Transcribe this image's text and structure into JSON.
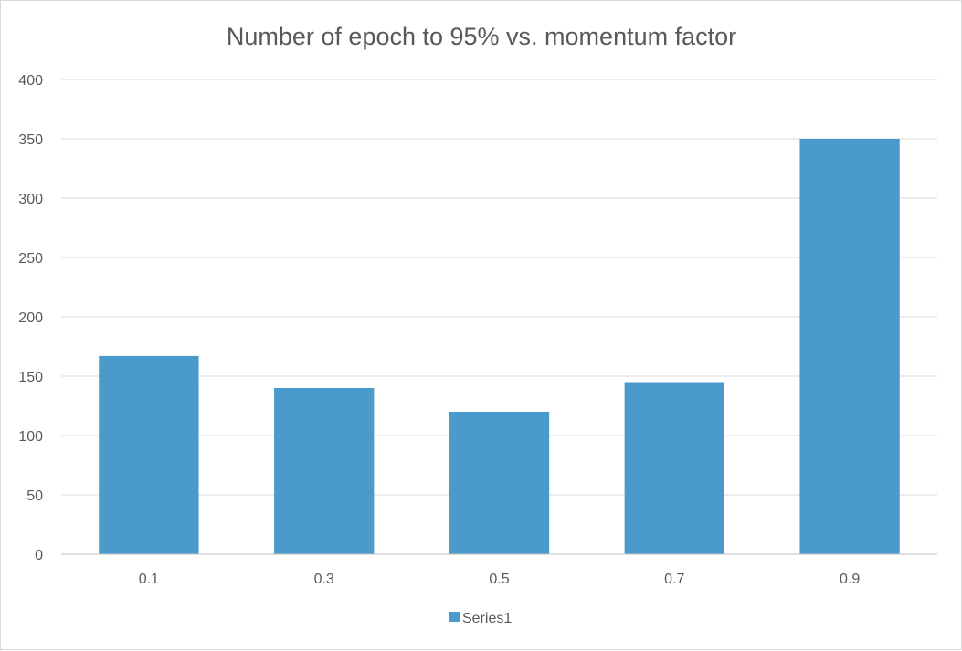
{
  "chart_data": {
    "type": "bar",
    "title": "Number of epoch to 95% vs. momentum factor",
    "xlabel": "",
    "ylabel": "",
    "categories": [
      "0.1",
      "0.3",
      "0.5",
      "0.7",
      "0.9"
    ],
    "series": [
      {
        "name": "Series1",
        "values": [
          167,
          140,
          120,
          145,
          350
        ],
        "color": "#4a9bcc"
      }
    ],
    "ylim": [
      0,
      400
    ],
    "yticks": [
      0,
      50,
      100,
      150,
      200,
      250,
      300,
      350,
      400
    ],
    "grid": true,
    "legend": "bottom-center",
    "gridColor": "#d9d9d9",
    "axisColor": "#bfbfbf"
  }
}
